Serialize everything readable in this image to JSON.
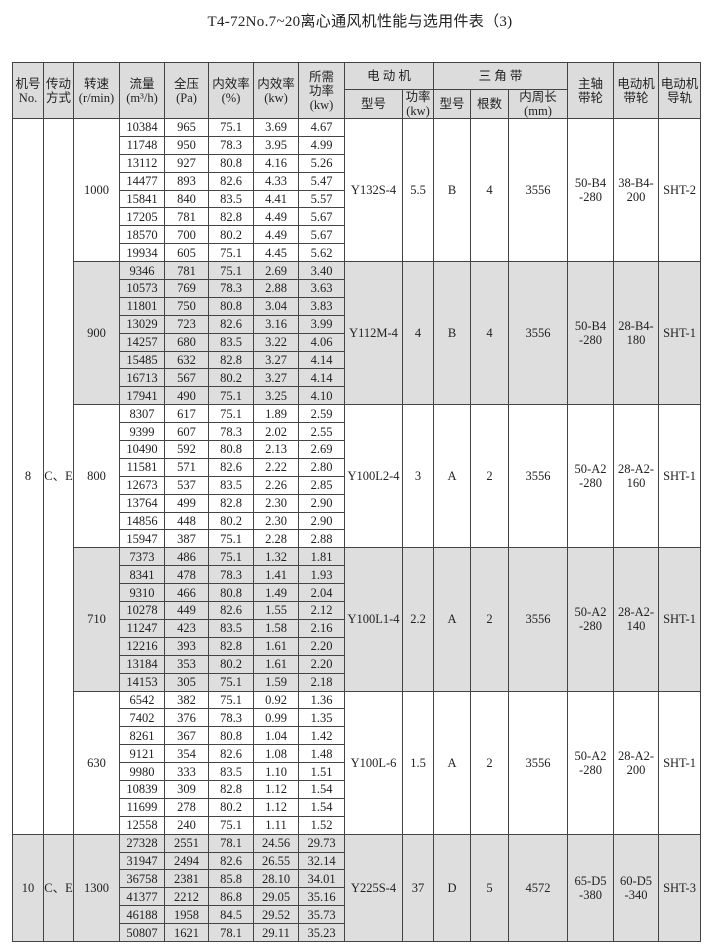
{
  "title": "T4-72No.7~20离心通风机性能与选用件表（3)",
  "headers": {
    "fan_no": "机号\nNo.",
    "drive": "传动\n方式",
    "speed": "转速\n(r/min)",
    "flow": "流量\n(m³/h)",
    "pressure": "全压\n(Pa)",
    "eff_pct": "内效率\n(%)",
    "eff_kw": "内效率\n(kw)",
    "req_power": "所需\n功率\n(kw)",
    "motor": "电 动 机",
    "motor_model": "型号",
    "motor_power": "功率\n(kw)",
    "belt": "三 角 带",
    "belt_type": "型号",
    "belt_count": "根数",
    "belt_length": "内周长\n(mm)",
    "spindle_pulley": "主轴\n带轮",
    "motor_pulley": "电动机\n带轮",
    "rail": "电动机\n导轨"
  },
  "fans": [
    {
      "no": "8",
      "drive": "C、E",
      "speeds": [
        {
          "speed": "1000",
          "motor_model": "Y132S-4",
          "motor_power": "5.5",
          "belt_type": "B",
          "belt_count": "4",
          "belt_length": "3556",
          "spindle_pulley": "50-B4\n-280",
          "motor_pulley": "38-B4-\n200",
          "rail": "SHT-2",
          "rows": [
            [
              "10384",
              "965",
              "75.1",
              "3.69",
              "4.67"
            ],
            [
              "11748",
              "950",
              "78.3",
              "3.95",
              "4.99"
            ],
            [
              "13112",
              "927",
              "80.8",
              "4.16",
              "5.26"
            ],
            [
              "14477",
              "893",
              "82.6",
              "4.33",
              "5.47"
            ],
            [
              "15841",
              "840",
              "83.5",
              "4.41",
              "5.57"
            ],
            [
              "17205",
              "781",
              "82.8",
              "4.49",
              "5.67"
            ],
            [
              "18570",
              "700",
              "80.2",
              "4.49",
              "5.67"
            ],
            [
              "19934",
              "605",
              "75.1",
              "4.45",
              "5.62"
            ]
          ]
        },
        {
          "speed": "900",
          "motor_model": "Y112M-4",
          "motor_power": "4",
          "belt_type": "B",
          "belt_count": "4",
          "belt_length": "3556",
          "spindle_pulley": "50-B4\n-280",
          "motor_pulley": "28-B4-\n180",
          "rail": "SHT-1",
          "rows": [
            [
              "9346",
              "781",
              "75.1",
              "2.69",
              "3.40"
            ],
            [
              "10573",
              "769",
              "78.3",
              "2.88",
              "3.63"
            ],
            [
              "11801",
              "750",
              "80.8",
              "3.04",
              "3.83"
            ],
            [
              "13029",
              "723",
              "82.6",
              "3.16",
              "3.99"
            ],
            [
              "14257",
              "680",
              "83.5",
              "3.22",
              "4.06"
            ],
            [
              "15485",
              "632",
              "82.8",
              "3.27",
              "4.14"
            ],
            [
              "16713",
              "567",
              "80.2",
              "3.27",
              "4.14"
            ],
            [
              "17941",
              "490",
              "75.1",
              "3.25",
              "4.10"
            ]
          ]
        },
        {
          "speed": "800",
          "motor_model": "Y100L2-4",
          "motor_power": "3",
          "belt_type": "A",
          "belt_count": "2",
          "belt_length": "3556",
          "spindle_pulley": "50-A2\n-280",
          "motor_pulley": "28-A2-\n160",
          "rail": "SHT-1",
          "rows": [
            [
              "8307",
              "617",
              "75.1",
              "1.89",
              "2.59"
            ],
            [
              "9399",
              "607",
              "78.3",
              "2.02",
              "2.55"
            ],
            [
              "10490",
              "592",
              "80.8",
              "2.13",
              "2.69"
            ],
            [
              "11581",
              "571",
              "82.6",
              "2.22",
              "2.80"
            ],
            [
              "12673",
              "537",
              "83.5",
              "2.26",
              "2.85"
            ],
            [
              "13764",
              "499",
              "82.8",
              "2.30",
              "2.90"
            ],
            [
              "14856",
              "448",
              "80.2",
              "2.30",
              "2.90"
            ],
            [
              "15947",
              "387",
              "75.1",
              "2.28",
              "2.88"
            ]
          ]
        },
        {
          "speed": "710",
          "motor_model": "Y100L1-4",
          "motor_power": "2.2",
          "belt_type": "A",
          "belt_count": "2",
          "belt_length": "3556",
          "spindle_pulley": "50-A2\n-280",
          "motor_pulley": "28-A2-\n140",
          "rail": "SHT-1",
          "rows": [
            [
              "7373",
              "486",
              "75.1",
              "1.32",
              "1.81"
            ],
            [
              "8341",
              "478",
              "78.3",
              "1.41",
              "1.93"
            ],
            [
              "9310",
              "466",
              "80.8",
              "1.49",
              "2.04"
            ],
            [
              "10278",
              "449",
              "82.6",
              "1.55",
              "2.12"
            ],
            [
              "11247",
              "423",
              "83.5",
              "1.58",
              "2.16"
            ],
            [
              "12216",
              "393",
              "82.8",
              "1.61",
              "2.20"
            ],
            [
              "13184",
              "353",
              "80.2",
              "1.61",
              "2.20"
            ],
            [
              "14153",
              "305",
              "75.1",
              "1.59",
              "2.18"
            ]
          ]
        },
        {
          "speed": "630",
          "motor_model": "Y100L-6",
          "motor_power": "1.5",
          "belt_type": "A",
          "belt_count": "2",
          "belt_length": "3556",
          "spindle_pulley": "50-A2\n-280",
          "motor_pulley": "28-A2-\n200",
          "rail": "SHT-1",
          "rows": [
            [
              "6542",
              "382",
              "75.1",
              "0.92",
              "1.36"
            ],
            [
              "7402",
              "376",
              "78.3",
              "0.99",
              "1.35"
            ],
            [
              "8261",
              "367",
              "80.8",
              "1.04",
              "1.42"
            ],
            [
              "9121",
              "354",
              "82.6",
              "1.08",
              "1.48"
            ],
            [
              "9980",
              "333",
              "83.5",
              "1.10",
              "1.51"
            ],
            [
              "10839",
              "309",
              "82.8",
              "1.12",
              "1.54"
            ],
            [
              "11699",
              "278",
              "80.2",
              "1.12",
              "1.54"
            ],
            [
              "12558",
              "240",
              "75.1",
              "1.11",
              "1.52"
            ]
          ]
        }
      ]
    },
    {
      "no": "10",
      "drive": "C、E",
      "speeds": [
        {
          "speed": "1300",
          "motor_model": "Y225S-4",
          "motor_power": "37",
          "belt_type": "D",
          "belt_count": "5",
          "belt_length": "4572",
          "spindle_pulley": "65-D5\n-380",
          "motor_pulley": "60-D5\n-340",
          "rail": "SHT-3",
          "rows": [
            [
              "27328",
              "2551",
              "78.1",
              "24.56",
              "29.73"
            ],
            [
              "31947",
              "2494",
              "82.6",
              "26.55",
              "32.14"
            ],
            [
              "36758",
              "2381",
              "85.8",
              "28.10",
              "34.01"
            ],
            [
              "41377",
              "2212",
              "86.8",
              "29.05",
              "35.16"
            ],
            [
              "46188",
              "1958",
              "84.5",
              "29.52",
              "35.73"
            ],
            [
              "50807",
              "1621",
              "78.1",
              "29.11",
              "35.23"
            ]
          ]
        }
      ]
    }
  ],
  "shaded_speeds": [
    "900",
    "710",
    "1300"
  ],
  "colors": {
    "shade": "#dedede",
    "header": "#dcdcdc",
    "border": "#444444"
  }
}
